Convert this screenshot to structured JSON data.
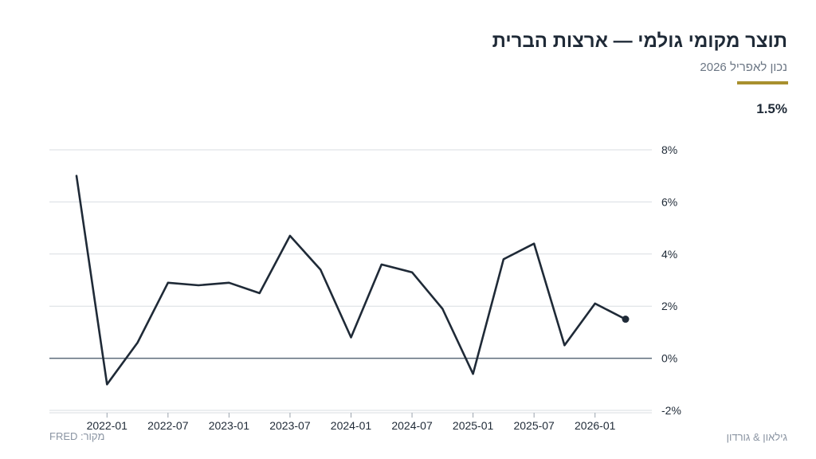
{
  "header": {
    "title": "תוצר מקומי גולמי — ארצות הברית",
    "subtitle": "נכון לאפריל 2026",
    "latest_value": "1.5%"
  },
  "footer": {
    "source": "מקור: FRED",
    "brand": "גילאון & גורדון"
  },
  "colors": {
    "line": "#1f2a37",
    "accent": "#a8902e",
    "grid": "#d9dde2",
    "zero_line": "#5c6b7a"
  },
  "chart_data": {
    "type": "line",
    "title": "תוצר מקומי גולמי — ארצות הברית",
    "xlabel": "",
    "ylabel": "",
    "ylim": [
      -2,
      8
    ],
    "yticks": [
      -2,
      0,
      2,
      4,
      6,
      8
    ],
    "ytick_labels": [
      "-2%",
      "0%",
      "2%",
      "4%",
      "6%",
      "8%"
    ],
    "xticks": [
      "2022-01",
      "2022-07",
      "2023-01",
      "2023-07",
      "2024-01",
      "2024-07",
      "2025-01",
      "2025-07",
      "2026-01"
    ],
    "grid": true,
    "legend": "none",
    "series": [
      {
        "x": [
          "2021-10",
          "2022-01",
          "2022-04",
          "2022-07",
          "2022-10",
          "2023-01",
          "2023-04",
          "2023-07",
          "2023-10",
          "2024-01",
          "2024-04",
          "2024-07",
          "2024-10",
          "2025-01",
          "2025-04",
          "2025-07",
          "2025-10",
          "2026-01",
          "2026-04"
        ],
        "values": [
          7.0,
          -1.0,
          0.6,
          2.9,
          2.8,
          2.9,
          2.5,
          4.7,
          3.4,
          0.8,
          3.6,
          3.3,
          1.9,
          -0.6,
          3.8,
          4.4,
          0.5,
          2.1,
          1.5
        ]
      }
    ]
  }
}
